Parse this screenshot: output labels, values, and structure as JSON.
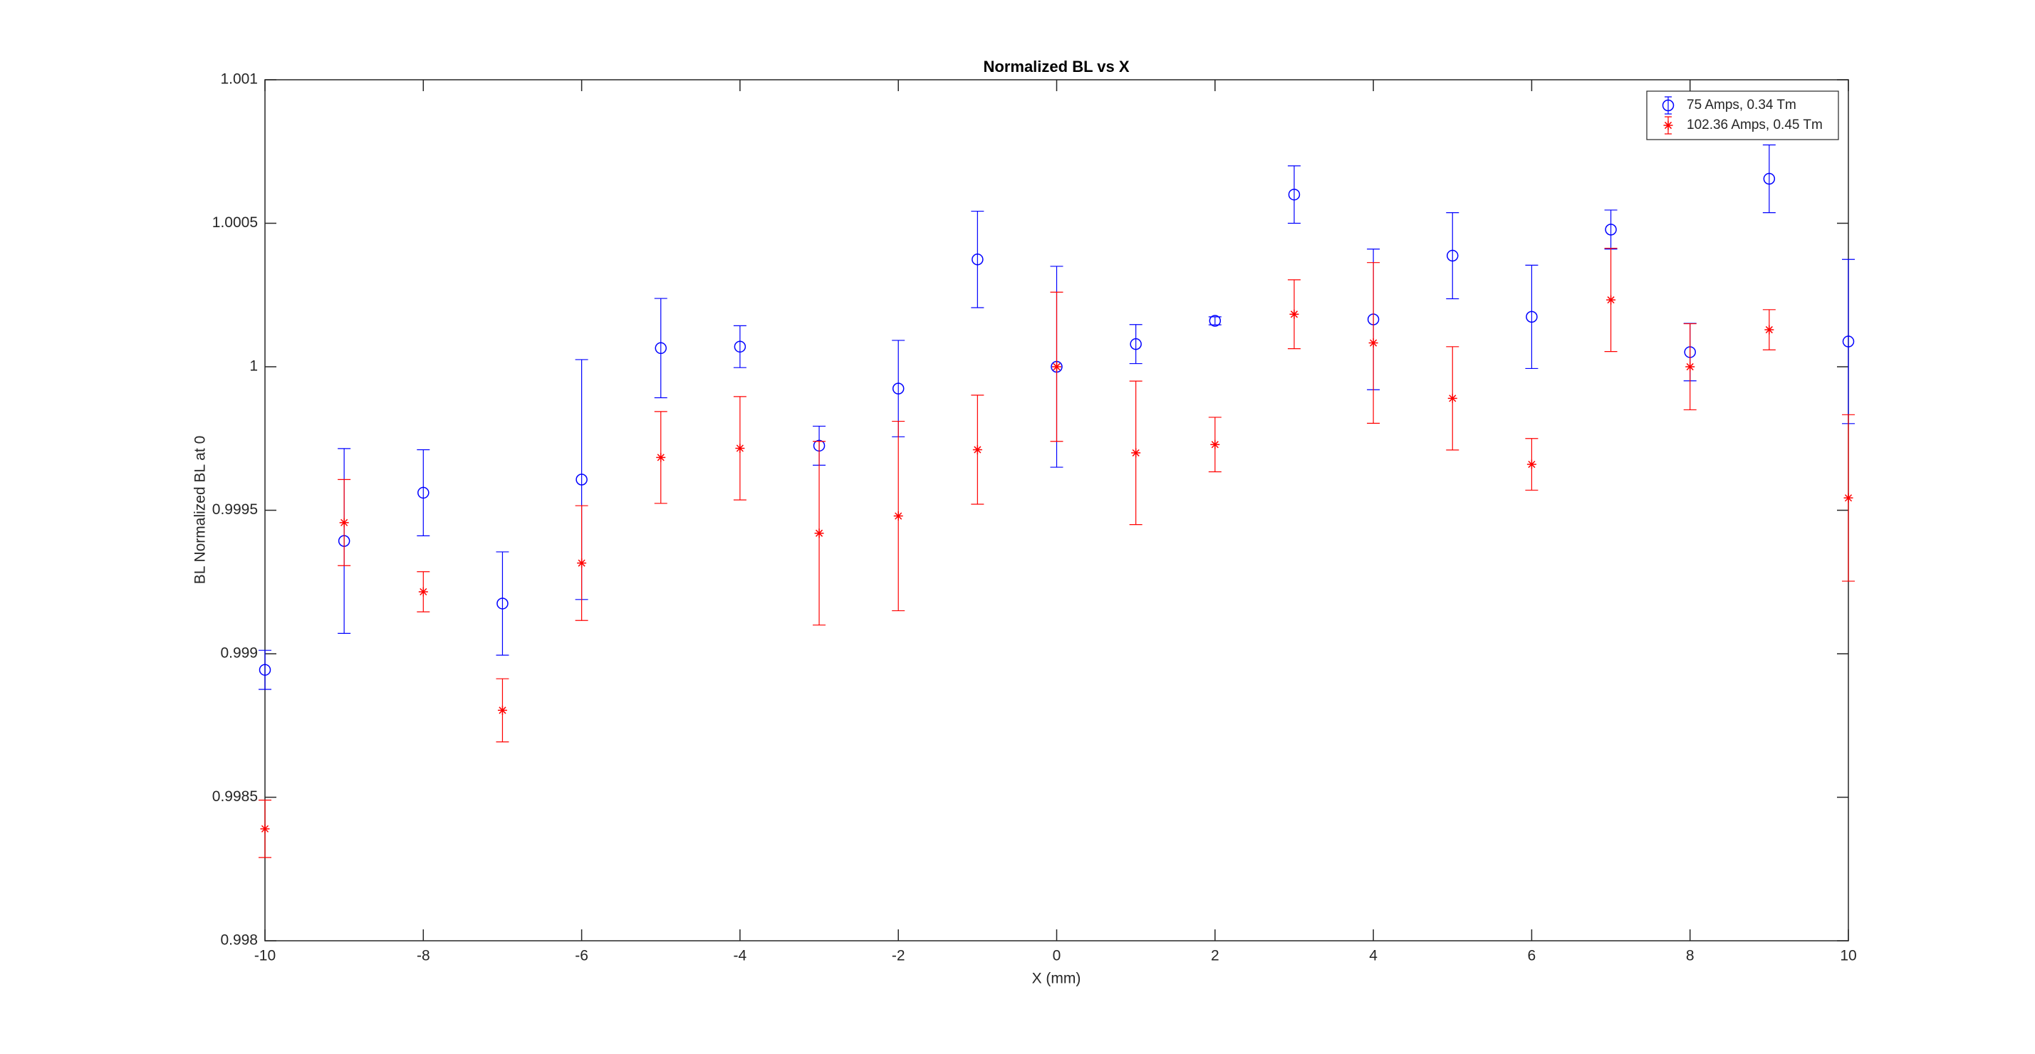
{
  "chart_data": {
    "type": "errorbar",
    "title": "Normalized BL vs X",
    "xlabel": "X (mm)",
    "ylabel": "BL Normalized BL at 0",
    "x": [
      -10,
      -9,
      -8,
      -7,
      -6,
      -5,
      -4,
      -3,
      -2,
      -1,
      0,
      1,
      2,
      3,
      4,
      5,
      6,
      7,
      8,
      9,
      10
    ],
    "series": [
      {
        "name": "75 Amps, 0.34 Tm",
        "color": "#0000ff",
        "marker": "circle",
        "values": [
          0.998944,
          0.999393,
          0.999561,
          0.999175,
          0.999607,
          1.000065,
          1.00007,
          0.999725,
          0.999924,
          1.000374,
          1.0,
          1.000079,
          1.00016,
          1.0006,
          1.000165,
          1.000387,
          1.000174,
          1.000478,
          1.000051,
          1.000655,
          1.000088
        ],
        "errors": [
          6.8e-05,
          0.000322,
          0.00015,
          0.00018,
          0.000418,
          0.000173,
          7.3e-05,
          6.8e-05,
          0.000168,
          0.000168,
          0.00035,
          6.8e-05,
          1.4e-05,
          0.0001,
          0.000245,
          0.00015,
          0.00018,
          6.8e-05,
          0.0001,
          0.000118,
          0.000286
        ]
      },
      {
        "name": "102.36 Amps, 0.45 Tm",
        "color": "#ff0000",
        "marker": "star",
        "values": [
          0.99839,
          0.999457,
          0.999216,
          0.998803,
          0.999316,
          0.999684,
          0.999716,
          0.99942,
          0.99948,
          0.999711,
          1.0,
          0.9997,
          0.999729,
          1.000183,
          1.000083,
          0.99989,
          0.99966,
          1.000233,
          1.0,
          1.000129,
          0.999543
        ],
        "errors": [
          0.0001,
          0.00015,
          7e-05,
          0.00011,
          0.0002,
          0.00016,
          0.00018,
          0.00032,
          0.00033,
          0.00019,
          0.00026,
          0.00025,
          9.5e-05,
          0.00012,
          0.00028,
          0.00018,
          9e-05,
          0.00018,
          0.00015,
          7e-05,
          0.00029
        ]
      }
    ],
    "xlim": [
      -10,
      10
    ],
    "ylim": [
      0.998,
      1.001
    ],
    "xticks": [
      -10,
      -8,
      -6,
      -4,
      -2,
      0,
      2,
      4,
      6,
      8,
      10
    ],
    "yticks": [
      0.998,
      0.9985,
      0.999,
      0.9995,
      1,
      1.0005,
      1.001
    ],
    "grid": false,
    "legend": "northeast"
  }
}
